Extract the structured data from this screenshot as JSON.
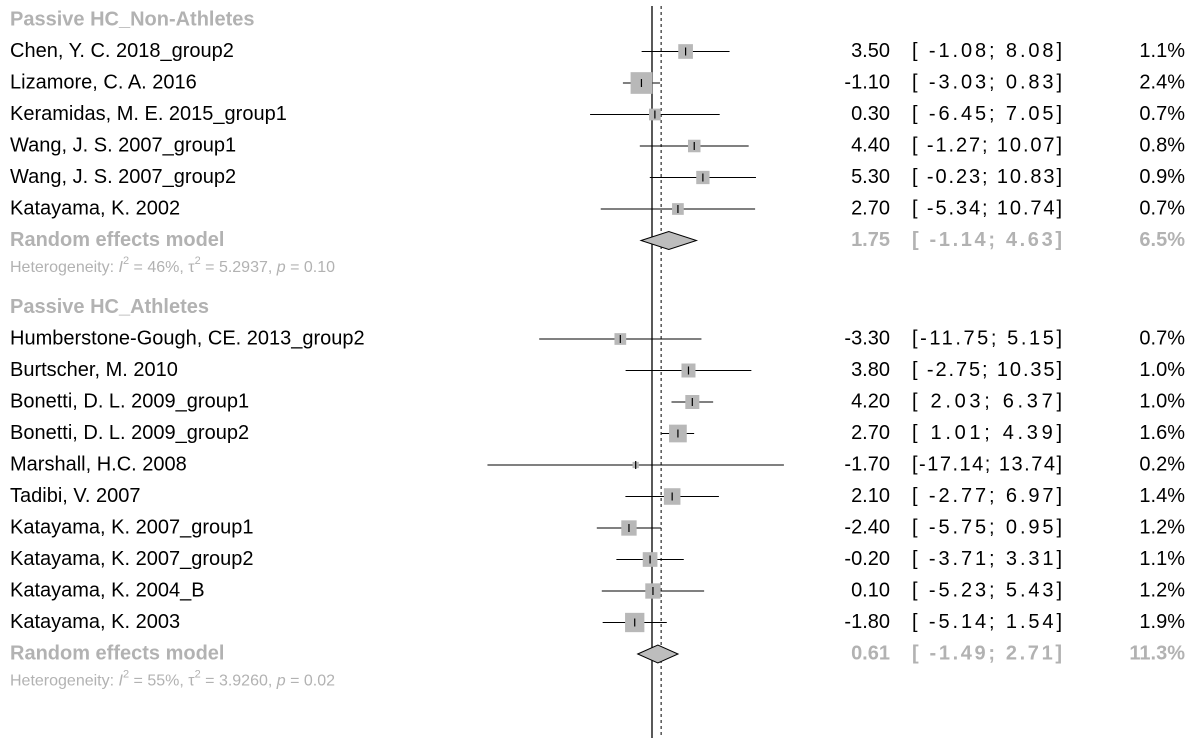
{
  "chart_data": {
    "type": "forest",
    "reference_lines": {
      "no_effect": 0,
      "overall": 0.95
    },
    "subgroups": [
      {
        "title": "Passive HC_Non-Athletes",
        "studies": [
          {
            "label": "Chen, Y. C. 2018_group2",
            "est": 3.5,
            "lo": -1.08,
            "hi": 8.08,
            "weight": 1.1,
            "est_text": "3.50",
            "ci_text": "[ -1.08;  8.08]",
            "w_text": "1.1%"
          },
          {
            "label": "Lizamore, C. A. 2016",
            "est": -1.1,
            "lo": -3.03,
            "hi": 0.83,
            "weight": 2.4,
            "est_text": "-1.10",
            "ci_text": "[ -3.03;  0.83]",
            "w_text": "2.4%"
          },
          {
            "label": "Keramidas, M. E. 2015_group1",
            "est": 0.3,
            "lo": -6.45,
            "hi": 7.05,
            "weight": 0.7,
            "est_text": "0.30",
            "ci_text": "[ -6.45;  7.05]",
            "w_text": "0.7%"
          },
          {
            "label": "Wang, J. S. 2007_group1",
            "est": 4.4,
            "lo": -1.27,
            "hi": 10.07,
            "weight": 0.8,
            "est_text": "4.40",
            "ci_text": "[ -1.27; 10.07]",
            "w_text": "0.8%"
          },
          {
            "label": "Wang, J. S. 2007_group2",
            "est": 5.3,
            "lo": -0.23,
            "hi": 10.83,
            "weight": 0.9,
            "est_text": "5.30",
            "ci_text": "[ -0.23; 10.83]",
            "w_text": "0.9%"
          },
          {
            "label": "Katayama, K. 2002",
            "est": 2.7,
            "lo": -5.34,
            "hi": 10.74,
            "weight": 0.7,
            "est_text": "2.70",
            "ci_text": "[ -5.34; 10.74]",
            "w_text": "0.7%"
          }
        ],
        "summary": {
          "label": "Random effects model",
          "est": 1.75,
          "lo": -1.14,
          "hi": 4.63,
          "est_text": "1.75",
          "ci_text": "[ -1.14;  4.63]",
          "w_text": "6.5%"
        },
        "heterogeneity": {
          "prefix": "Heterogeneity: ",
          "i2_sym": "I",
          "sq": "2",
          "i2_val": " = 46%, ",
          "tau_sym": "τ",
          "tau_val": " = 5.2937, ",
          "p_sym": "p",
          "p_val": " = 0.10"
        }
      },
      {
        "title": "Passive HC_Athletes",
        "studies": [
          {
            "label": "Humberstone-Gough, CE. 2013_group2",
            "est": -3.3,
            "lo": -11.75,
            "hi": 5.15,
            "weight": 0.7,
            "est_text": "-3.30",
            "ci_text": "[-11.75;  5.15]",
            "w_text": "0.7%"
          },
          {
            "label": "Burtscher, M. 2010",
            "est": 3.8,
            "lo": -2.75,
            "hi": 10.35,
            "weight": 1.0,
            "est_text": "3.80",
            "ci_text": "[ -2.75; 10.35]",
            "w_text": "1.0%"
          },
          {
            "label": "Bonetti, D. L. 2009_group1",
            "est": 4.2,
            "lo": 2.03,
            "hi": 6.37,
            "weight": 1.0,
            "est_text": "4.20",
            "ci_text": "[  2.03;  6.37]",
            "w_text": "1.0%"
          },
          {
            "label": "Bonetti, D. L. 2009_group2",
            "est": 2.7,
            "lo": 1.01,
            "hi": 4.39,
            "weight": 1.6,
            "est_text": "2.70",
            "ci_text": "[  1.01;  4.39]",
            "w_text": "1.6%"
          },
          {
            "label": "Marshall, H.C. 2008",
            "est": -1.7,
            "lo": -17.14,
            "hi": 13.74,
            "weight": 0.2,
            "est_text": "-1.70",
            "ci_text": "[-17.14; 13.74]",
            "w_text": "0.2%"
          },
          {
            "label": "Tadibi, V. 2007",
            "est": 2.1,
            "lo": -2.77,
            "hi": 6.97,
            "weight": 1.4,
            "est_text": "2.10",
            "ci_text": "[ -2.77;  6.97]",
            "w_text": "1.4%"
          },
          {
            "label": "Katayama, K. 2007_group1",
            "est": -2.4,
            "lo": -5.75,
            "hi": 0.95,
            "weight": 1.2,
            "est_text": "-2.40",
            "ci_text": "[ -5.75;  0.95]",
            "w_text": "1.2%"
          },
          {
            "label": "Katayama, K. 2007_group2",
            "est": -0.2,
            "lo": -3.71,
            "hi": 3.31,
            "weight": 1.1,
            "est_text": "-0.20",
            "ci_text": "[ -3.71;  3.31]",
            "w_text": "1.1%"
          },
          {
            "label": "Katayama, K. 2004_B",
            "est": 0.1,
            "lo": -5.23,
            "hi": 5.43,
            "weight": 1.2,
            "est_text": "0.10",
            "ci_text": "[ -5.23;  5.43]",
            "w_text": "1.2%"
          },
          {
            "label": "Katayama, K. 2003",
            "est": -1.8,
            "lo": -5.14,
            "hi": 1.54,
            "weight": 1.9,
            "est_text": "-1.80",
            "ci_text": "[ -5.14;  1.54]",
            "w_text": "1.9%"
          }
        ],
        "summary": {
          "label": "Random effects model",
          "est": 0.61,
          "lo": -1.49,
          "hi": 2.71,
          "est_text": "0.61",
          "ci_text": "[ -1.49;  2.71]",
          "w_text": "11.3%"
        },
        "heterogeneity": {
          "prefix": "Heterogeneity: ",
          "i2_sym": "I",
          "sq": "2",
          "i2_val": " = 55%, ",
          "tau_sym": "τ",
          "tau_val": " = 3.9260, ",
          "p_sym": "p",
          "p_val": " = 0.02"
        }
      }
    ],
    "colors": {
      "box": "#b8b8b8",
      "summary_text": "#b2b2b2",
      "diamond_fill": "#bdbdbd",
      "line": "#000000"
    }
  }
}
